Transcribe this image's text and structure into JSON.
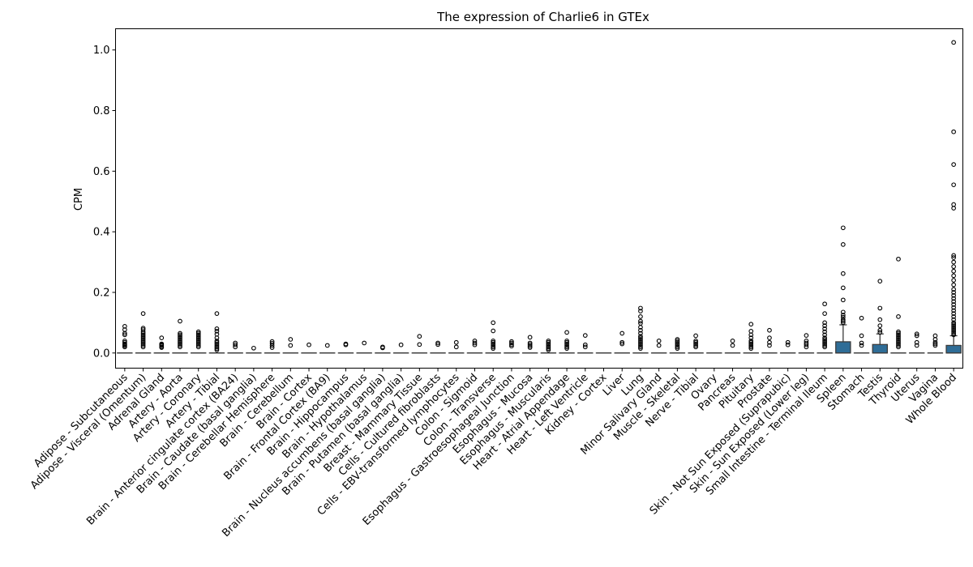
{
  "chart_data": {
    "type": "box",
    "title": "The expression of Charlie6 in GTEx",
    "xlabel": "",
    "ylabel": "CPM",
    "ylim": [
      -0.05,
      1.07
    ],
    "yticks": [
      0.0,
      0.2,
      0.4,
      0.6,
      0.8,
      1.0
    ],
    "ytick_labels": [
      "0.0",
      "0.2",
      "0.4",
      "0.6",
      "0.8",
      "1.0"
    ],
    "grid": false,
    "legend": "none",
    "box_color": "#2f6d97",
    "line_color": "#3c3c3c",
    "categories": [
      "Adipose - Subcutaneous",
      "Adipose - Visceral (Omentum)",
      "Adrenal Gland",
      "Artery - Aorta",
      "Artery - Coronary",
      "Artery - Tibial",
      "Brain - Anterior cingulate cortex (BA24)",
      "Brain - Caudate (basal ganglia)",
      "Brain - Cerebellar Hemisphere",
      "Brain - Cerebellum",
      "Brain - Cortex",
      "Brain - Frontal Cortex (BA9)",
      "Brain - Hippocampus",
      "Brain - Hypothalamus",
      "Brain - Nucleus accumbens (basal ganglia)",
      "Brain - Putamen (basal ganglia)",
      "Breast - Mammary Tissue",
      "Cells - Cultured fibroblasts",
      "Cells - EBV-transformed lymphocytes",
      "Colon - Sigmoid",
      "Colon - Transverse",
      "Esophagus - Gastroesophageal Junction",
      "Esophagus - Mucosa",
      "Esophagus - Muscularis",
      "Heart - Atrial Appendage",
      "Heart - Left Ventricle",
      "Kidney - Cortex",
      "Liver",
      "Lung",
      "Minor Salivary Gland",
      "Muscle - Skeletal",
      "Nerve - Tibial",
      "Ovary",
      "Pancreas",
      "Pituitary",
      "Prostate",
      "Skin - Not Sun Exposed (Suprapubic)",
      "Skin - Sun Exposed (Lower leg)",
      "Small Intestine - Terminal Ileum",
      "Spleen",
      "Stomach",
      "Testis",
      "Thyroid",
      "Uterus",
      "Vagina",
      "Whole Blood"
    ],
    "boxes": [
      {
        "q1": 0,
        "median": 0,
        "q3": 0,
        "whisker_low": 0,
        "whisker_high": 0,
        "outliers": [
          0.088,
          0.077,
          0.065,
          0.06,
          0.04,
          0.035,
          0.03,
          0.027,
          0.024,
          0.02
        ]
      },
      {
        "q1": 0,
        "median": 0,
        "q3": 0,
        "whisker_low": 0,
        "whisker_high": 0,
        "outliers": [
          0.13,
          0.082,
          0.077,
          0.07,
          0.065,
          0.06,
          0.055,
          0.05,
          0.045,
          0.04,
          0.035,
          0.03,
          0.025,
          0.02
        ]
      },
      {
        "q1": 0,
        "median": 0,
        "q3": 0,
        "whisker_low": 0,
        "whisker_high": 0,
        "outliers": [
          0.05,
          0.03,
          0.027,
          0.024,
          0.02,
          0.018
        ]
      },
      {
        "q1": 0,
        "median": 0,
        "q3": 0,
        "whisker_low": 0,
        "whisker_high": 0,
        "outliers": [
          0.105,
          0.065,
          0.06,
          0.055,
          0.05,
          0.045,
          0.04,
          0.035,
          0.03,
          0.025,
          0.02
        ]
      },
      {
        "q1": 0,
        "median": 0,
        "q3": 0,
        "whisker_low": 0,
        "whisker_high": 0,
        "outliers": [
          0.07,
          0.065,
          0.06,
          0.055,
          0.05,
          0.045,
          0.04,
          0.035,
          0.03,
          0.025,
          0.02
        ]
      },
      {
        "q1": 0,
        "median": 0,
        "q3": 0,
        "whisker_low": 0,
        "whisker_high": 0,
        "outliers": [
          0.13,
          0.08,
          0.072,
          0.062,
          0.05,
          0.04,
          0.035,
          0.03,
          0.025,
          0.02,
          0.015,
          0.01
        ]
      },
      {
        "q1": 0,
        "median": 0,
        "q3": 0,
        "whisker_low": 0,
        "whisker_high": 0,
        "outliers": [
          0.033,
          0.027,
          0.02
        ]
      },
      {
        "q1": 0,
        "median": 0,
        "q3": 0,
        "whisker_low": 0,
        "whisker_high": 0,
        "outliers": [
          0.016
        ]
      },
      {
        "q1": 0,
        "median": 0,
        "q3": 0,
        "whisker_low": 0,
        "whisker_high": 0,
        "outliers": [
          0.038,
          0.032,
          0.025,
          0.018
        ]
      },
      {
        "q1": 0,
        "median": 0,
        "q3": 0,
        "whisker_low": 0,
        "whisker_high": 0,
        "outliers": [
          0.045,
          0.025
        ]
      },
      {
        "q1": 0,
        "median": 0,
        "q3": 0,
        "whisker_low": 0,
        "whisker_high": 0,
        "outliers": [
          0.027
        ]
      },
      {
        "q1": 0,
        "median": 0,
        "q3": 0,
        "whisker_low": 0,
        "whisker_high": 0,
        "outliers": [
          0.025
        ]
      },
      {
        "q1": 0,
        "median": 0,
        "q3": 0,
        "whisker_low": 0,
        "whisker_high": 0,
        "outliers": [
          0.03,
          0.027
        ]
      },
      {
        "q1": 0,
        "median": 0,
        "q3": 0,
        "whisker_low": 0,
        "whisker_high": 0,
        "outliers": [
          0.033
        ]
      },
      {
        "q1": 0,
        "median": 0,
        "q3": 0,
        "whisker_low": 0,
        "whisker_high": 0,
        "outliers": [
          0.02,
          0.017
        ]
      },
      {
        "q1": 0,
        "median": 0,
        "q3": 0,
        "whisker_low": 0,
        "whisker_high": 0,
        "outliers": [
          0.027
        ]
      },
      {
        "q1": 0,
        "median": 0,
        "q3": 0,
        "whisker_low": 0,
        "whisker_high": 0,
        "outliers": [
          0.055,
          0.028
        ]
      },
      {
        "q1": 0,
        "median": 0,
        "q3": 0,
        "whisker_low": 0,
        "whisker_high": 0,
        "outliers": [
          0.033,
          0.028
        ]
      },
      {
        "q1": 0,
        "median": 0,
        "q3": 0,
        "whisker_low": 0,
        "whisker_high": 0,
        "outliers": [
          0.035,
          0.02
        ]
      },
      {
        "q1": 0,
        "median": 0,
        "q3": 0,
        "whisker_low": 0,
        "whisker_high": 0,
        "outliers": [
          0.04,
          0.033,
          0.027
        ]
      },
      {
        "q1": 0,
        "median": 0,
        "q3": 0,
        "whisker_low": 0,
        "whisker_high": 0,
        "outliers": [
          0.1,
          0.073,
          0.04,
          0.035,
          0.03,
          0.025,
          0.02,
          0.015
        ]
      },
      {
        "q1": 0,
        "median": 0,
        "q3": 0,
        "whisker_low": 0,
        "whisker_high": 0,
        "outliers": [
          0.038,
          0.033,
          0.028,
          0.023
        ]
      },
      {
        "q1": 0,
        "median": 0,
        "q3": 0,
        "whisker_low": 0,
        "whisker_high": 0,
        "outliers": [
          0.052,
          0.033,
          0.028,
          0.023,
          0.018
        ]
      },
      {
        "q1": 0,
        "median": 0,
        "q3": 0,
        "whisker_low": 0,
        "whisker_high": 0,
        "outliers": [
          0.04,
          0.035,
          0.03,
          0.025,
          0.02,
          0.015,
          0.01
        ]
      },
      {
        "q1": 0,
        "median": 0,
        "q3": 0,
        "whisker_low": 0,
        "whisker_high": 0,
        "outliers": [
          0.068,
          0.04,
          0.035,
          0.03,
          0.025,
          0.02,
          0.015
        ]
      },
      {
        "q1": 0,
        "median": 0,
        "q3": 0,
        "whisker_low": 0,
        "whisker_high": 0,
        "outliers": [
          0.058,
          0.027,
          0.02
        ]
      },
      {
        "q1": 0,
        "median": 0,
        "q3": 0,
        "whisker_low": 0,
        "whisker_high": 0,
        "outliers": []
      },
      {
        "q1": 0,
        "median": 0,
        "q3": 0,
        "whisker_low": 0,
        "whisker_high": 0,
        "outliers": [
          0.065,
          0.035,
          0.03
        ]
      },
      {
        "q1": 0,
        "median": 0,
        "q3": 0,
        "whisker_low": 0,
        "whisker_high": 0,
        "outliers": [
          0.148,
          0.138,
          0.12,
          0.105,
          0.098,
          0.085,
          0.075,
          0.065,
          0.055,
          0.05,
          0.045,
          0.04,
          0.035,
          0.03,
          0.025,
          0.02,
          0.015
        ]
      },
      {
        "q1": 0,
        "median": 0,
        "q3": 0,
        "whisker_low": 0,
        "whisker_high": 0,
        "outliers": [
          0.04,
          0.025
        ]
      },
      {
        "q1": 0,
        "median": 0,
        "q3": 0,
        "whisker_low": 0,
        "whisker_high": 0,
        "outliers": [
          0.045,
          0.04,
          0.035,
          0.03,
          0.025,
          0.02,
          0.015
        ]
      },
      {
        "q1": 0,
        "median": 0,
        "q3": 0,
        "whisker_low": 0,
        "whisker_high": 0,
        "outliers": [
          0.057,
          0.04,
          0.035,
          0.03,
          0.025,
          0.02
        ]
      },
      {
        "q1": 0,
        "median": 0,
        "q3": 0,
        "whisker_low": 0,
        "whisker_high": 0,
        "outliers": []
      },
      {
        "q1": 0,
        "median": 0,
        "q3": 0,
        "whisker_low": 0,
        "whisker_high": 0,
        "outliers": [
          0.04,
          0.025
        ]
      },
      {
        "q1": 0,
        "median": 0,
        "q3": 0,
        "whisker_low": 0,
        "whisker_high": 0,
        "outliers": [
          0.095,
          0.072,
          0.06,
          0.05,
          0.04,
          0.035,
          0.03,
          0.025,
          0.02,
          0.015
        ]
      },
      {
        "q1": 0,
        "median": 0,
        "q3": 0,
        "whisker_low": 0,
        "whisker_high": 0,
        "outliers": [
          0.075,
          0.05,
          0.035,
          0.025
        ]
      },
      {
        "q1": 0,
        "median": 0,
        "q3": 0,
        "whisker_low": 0,
        "whisker_high": 0,
        "outliers": [
          0.035,
          0.027
        ]
      },
      {
        "q1": 0,
        "median": 0,
        "q3": 0,
        "whisker_low": 0,
        "whisker_high": 0,
        "outliers": [
          0.058,
          0.04,
          0.033,
          0.027,
          0.02
        ]
      },
      {
        "q1": 0,
        "median": 0,
        "q3": 0,
        "whisker_low": 0,
        "whisker_high": 0,
        "outliers": [
          0.162,
          0.13,
          0.1,
          0.09,
          0.08,
          0.07,
          0.06,
          0.05,
          0.045,
          0.04,
          0.035,
          0.03,
          0.025,
          0.02
        ]
      },
      {
        "q1": 0,
        "median": 0,
        "q3": 0.037,
        "whisker_low": 0,
        "whisker_high": 0.093,
        "outliers": [
          0.413,
          0.358,
          0.262,
          0.215,
          0.175,
          0.135,
          0.125,
          0.118,
          0.11,
          0.105,
          0.1
        ]
      },
      {
        "q1": 0,
        "median": 0,
        "q3": 0,
        "whisker_low": 0,
        "whisker_high": 0,
        "outliers": [
          0.115,
          0.057,
          0.033,
          0.025
        ]
      },
      {
        "q1": 0,
        "median": 0,
        "q3": 0.028,
        "whisker_low": 0,
        "whisker_high": 0.063,
        "outliers": [
          0.237,
          0.148,
          0.11,
          0.09,
          0.075,
          0.068
        ]
      },
      {
        "q1": 0,
        "median": 0,
        "q3": 0,
        "whisker_low": 0,
        "whisker_high": 0,
        "outliers": [
          0.31,
          0.12,
          0.07,
          0.065,
          0.06,
          0.055,
          0.05,
          0.045,
          0.04,
          0.035,
          0.03,
          0.025,
          0.02
        ]
      },
      {
        "q1": 0,
        "median": 0,
        "q3": 0,
        "whisker_low": 0,
        "whisker_high": 0,
        "outliers": [
          0.063,
          0.057,
          0.035,
          0.025
        ]
      },
      {
        "q1": 0,
        "median": 0,
        "q3": 0,
        "whisker_low": 0,
        "whisker_high": 0,
        "outliers": [
          0.057,
          0.045,
          0.035,
          0.03,
          0.025
        ]
      },
      {
        "q1": 0,
        "median": 0,
        "q3": 0.025,
        "whisker_low": 0,
        "whisker_high": 0.057,
        "outliers": [
          1.025,
          0.73,
          0.622,
          0.555,
          0.49,
          0.478,
          0.322,
          0.315,
          0.3,
          0.285,
          0.27,
          0.255,
          0.24,
          0.225,
          0.21,
          0.2,
          0.19,
          0.18,
          0.17,
          0.16,
          0.15,
          0.14,
          0.13,
          0.12,
          0.11,
          0.1,
          0.095,
          0.09,
          0.085,
          0.08,
          0.075,
          0.07,
          0.065,
          0.06
        ]
      }
    ]
  }
}
